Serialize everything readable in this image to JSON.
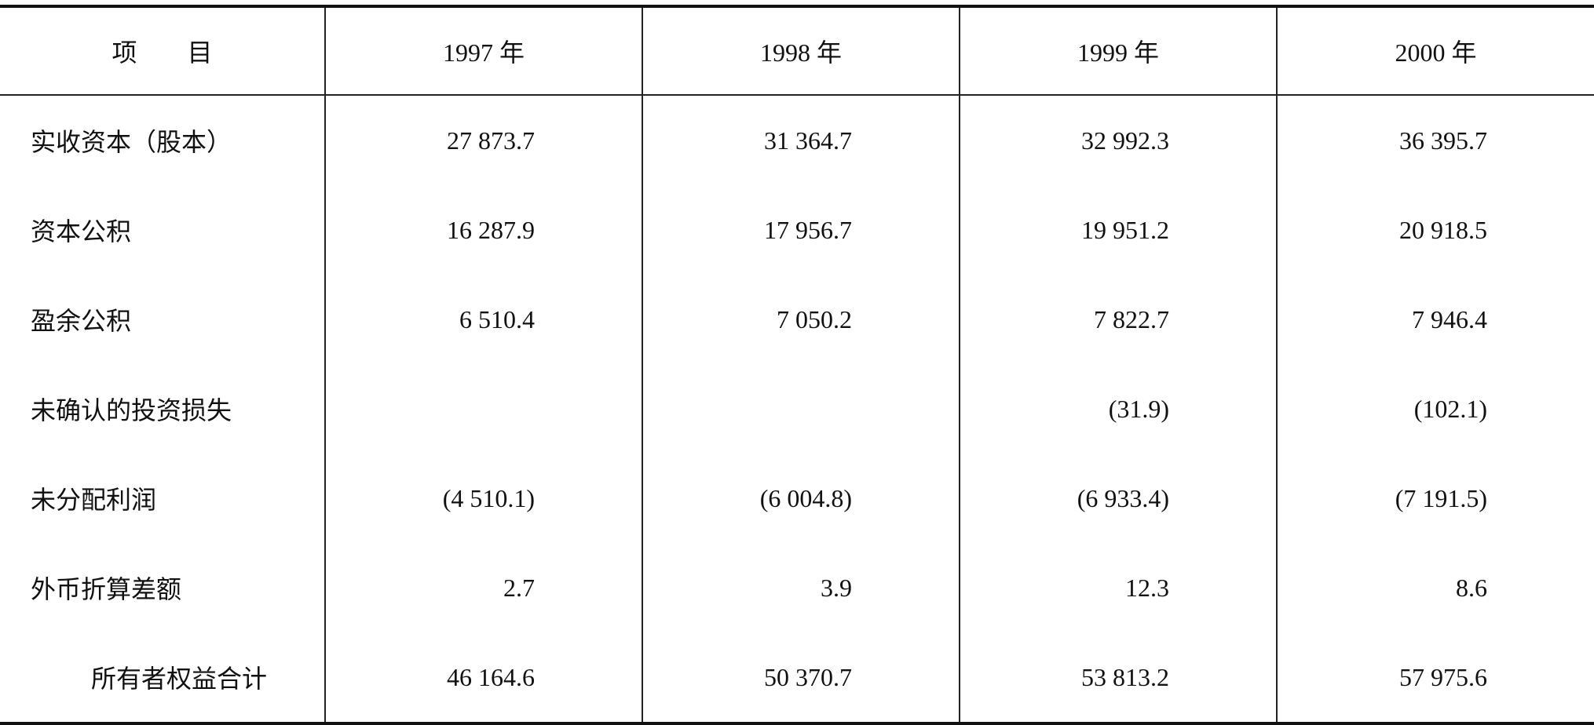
{
  "table": {
    "header": [
      "项　　目",
      "1997 年",
      "1998 年",
      "1999 年",
      "2000 年"
    ],
    "rows": [
      [
        "实收资本（股本）",
        "27 873.7",
        "31 364.7",
        "32 992.3",
        "36 395.7"
      ],
      [
        "资本公积",
        "16 287.9",
        "17 956.7",
        "19 951.2",
        "20 918.5"
      ],
      [
        "盈余公积",
        "6 510.4",
        "7 050.2",
        "7 822.7",
        "7 946.4"
      ],
      [
        "未确认的投资损失",
        null,
        null,
        "(31.9)",
        "(102.1)"
      ],
      [
        "未分配利润",
        "(4 510.1)",
        "(6 004.8)",
        "(6 933.4)",
        "(7 191.5)"
      ],
      [
        "外币折算差额",
        "2.7",
        "3.9",
        "12.3",
        "8.6"
      ],
      [
        "所有者权益合计",
        "46 164.6",
        "50 370.7",
        "53 813.2",
        "57 975.6"
      ]
    ]
  }
}
